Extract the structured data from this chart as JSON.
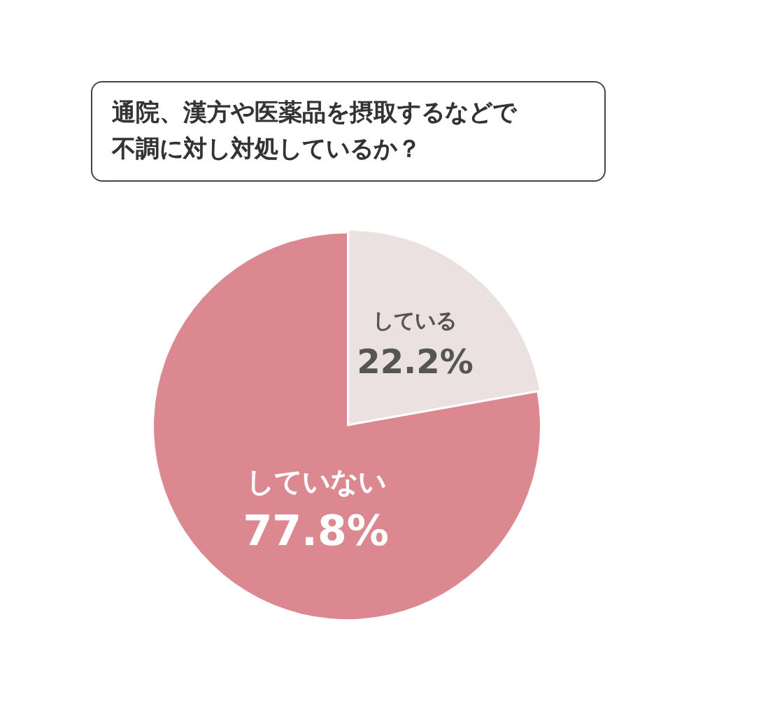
{
  "chart_data": {
    "type": "pie",
    "title": "通院、漢方や医薬品を摂取するなどで不調に対し対処しているか？",
    "categories": [
      "している",
      "していない"
    ],
    "values": [
      22.2,
      77.8
    ],
    "colors": [
      "#ebe1e1",
      "#dc8891"
    ],
    "value_labels": [
      "22.2%",
      "77.8%"
    ],
    "legend": false
  }
}
